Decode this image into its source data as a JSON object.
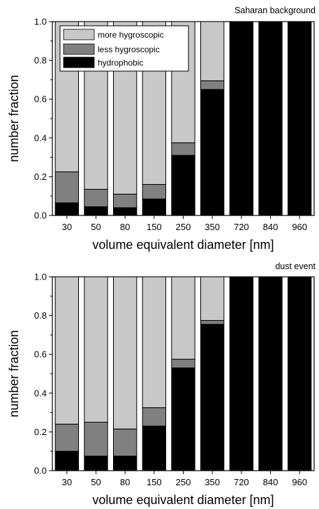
{
  "colors": {
    "more_hygroscopic": "#c8c8c8",
    "less_hygroscopic": "#808080",
    "hydrophobic": "#000000"
  },
  "chart_data": [
    {
      "type": "bar",
      "stacked": true,
      "title": "Saharan background",
      "xlabel": "volume equivalent diameter [nm]",
      "ylabel": "number fraction",
      "ylim": [
        0,
        1
      ],
      "yticks": [
        "0.0",
        "0.2",
        "0.4",
        "0.6",
        "0.8",
        "1.0"
      ],
      "categories": [
        "30",
        "50",
        "80",
        "150",
        "250",
        "350",
        "720",
        "840",
        "960"
      ],
      "legend_position": "top-left",
      "series": [
        {
          "name": "hydrophobic",
          "values": [
            0.065,
            0.045,
            0.04,
            0.085,
            0.31,
            0.65,
            1.0,
            1.0,
            1.0
          ]
        },
        {
          "name": "less hygroscopic",
          "values": [
            0.16,
            0.09,
            0.07,
            0.075,
            0.065,
            0.045,
            0.0,
            0.0,
            0.0
          ]
        },
        {
          "name": "more hygroscopic",
          "values": [
            0.775,
            0.865,
            0.89,
            0.84,
            0.625,
            0.305,
            0.0,
            0.0,
            0.0
          ]
        }
      ]
    },
    {
      "type": "bar",
      "stacked": true,
      "title": "dust event",
      "xlabel": "volume equivalent diameter [nm]",
      "ylabel": "number fraction",
      "ylim": [
        0,
        1
      ],
      "yticks": [
        "0.0",
        "0.2",
        "0.4",
        "0.6",
        "0.8",
        "1.0"
      ],
      "categories": [
        "30",
        "50",
        "80",
        "150",
        "250",
        "350",
        "720",
        "840",
        "960"
      ],
      "series": [
        {
          "name": "hydrophobic",
          "values": [
            0.1,
            0.075,
            0.075,
            0.23,
            0.53,
            0.755,
            1.0,
            1.0,
            1.0
          ]
        },
        {
          "name": "less hygroscopic",
          "values": [
            0.14,
            0.175,
            0.14,
            0.095,
            0.045,
            0.02,
            0.0,
            0.0,
            0.0
          ]
        },
        {
          "name": "more hygroscopic",
          "values": [
            0.76,
            0.75,
            0.785,
            0.675,
            0.425,
            0.225,
            0.0,
            0.0,
            0.0
          ]
        }
      ]
    }
  ]
}
